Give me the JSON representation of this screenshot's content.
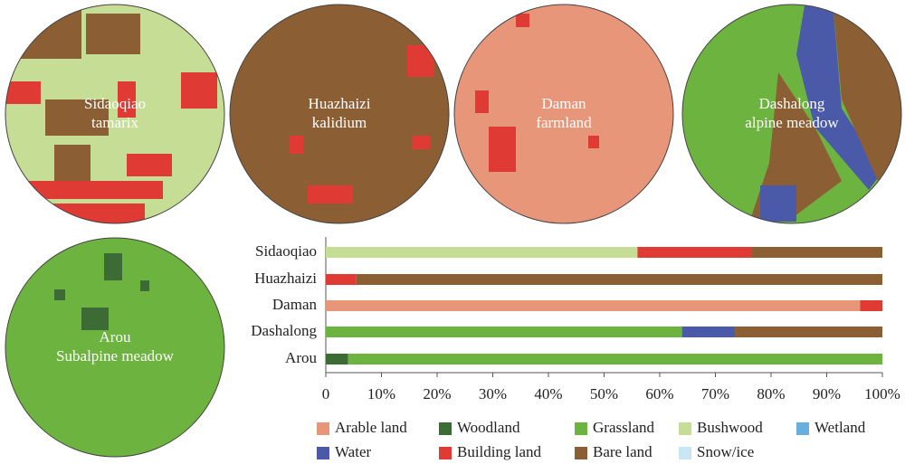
{
  "maps": [
    {
      "lines": [
        "Sidaoqiao",
        "tamarix"
      ]
    },
    {
      "lines": [
        "Huazhaizi",
        "kalidium"
      ]
    },
    {
      "lines": [
        "Daman",
        "farmland"
      ]
    },
    {
      "lines": [
        "Dashalong",
        "alpine meadow"
      ]
    },
    {
      "lines": [
        "Arou",
        "Subalpine meadow"
      ]
    }
  ],
  "chart_data": {
    "type": "stacked-bar-horizontal",
    "categories": [
      "Sidaoqiao",
      "Huazhaizi",
      "Daman",
      "Dashalong",
      "Arou"
    ],
    "xlim": [
      0,
      100
    ],
    "xticks": [
      0,
      {
        "value": 10,
        "label": "10%"
      },
      {
        "value": 20,
        "label": "20%"
      },
      {
        "value": 30,
        "label": "30%"
      },
      {
        "value": 40,
        "label": "40%"
      },
      {
        "value": 50,
        "label": "50%"
      },
      {
        "value": 60,
        "label": "60%"
      },
      {
        "value": 70,
        "label": "70%"
      },
      {
        "value": 80,
        "label": "80%"
      },
      {
        "value": 90,
        "label": "90%"
      },
      {
        "value": 100,
        "label": "100%"
      }
    ],
    "series": [
      {
        "name": "Arable land",
        "color": "#e8967a",
        "values": [
          0,
          0,
          96,
          0,
          0
        ]
      },
      {
        "name": "Woodland",
        "color": "#3d6b35",
        "values": [
          0,
          0,
          0,
          0,
          4
        ]
      },
      {
        "name": "Grassland",
        "color": "#6db33f",
        "values": [
          0,
          0,
          0,
          64,
          96
        ]
      },
      {
        "name": "Bushwood",
        "color": "#c5dd95",
        "values": [
          56,
          0,
          0,
          0,
          0
        ]
      },
      {
        "name": "Wetland",
        "color": "#6aaee0",
        "values": [
          0,
          0,
          0,
          0,
          0
        ]
      },
      {
        "name": "Water",
        "color": "#4a5aa8",
        "values": [
          0,
          0,
          0,
          9.5,
          0
        ]
      },
      {
        "name": "Building land",
        "color": "#e03a35",
        "values": [
          20.5,
          5.5,
          4,
          0,
          0
        ]
      },
      {
        "name": "Bare land",
        "color": "#8b5e34",
        "values": [
          23.5,
          94.5,
          0,
          26.5,
          0
        ]
      },
      {
        "name": "Snow/ice",
        "color": "#c9e6f5",
        "values": [
          0,
          0,
          0,
          0,
          0
        ]
      }
    ]
  }
}
